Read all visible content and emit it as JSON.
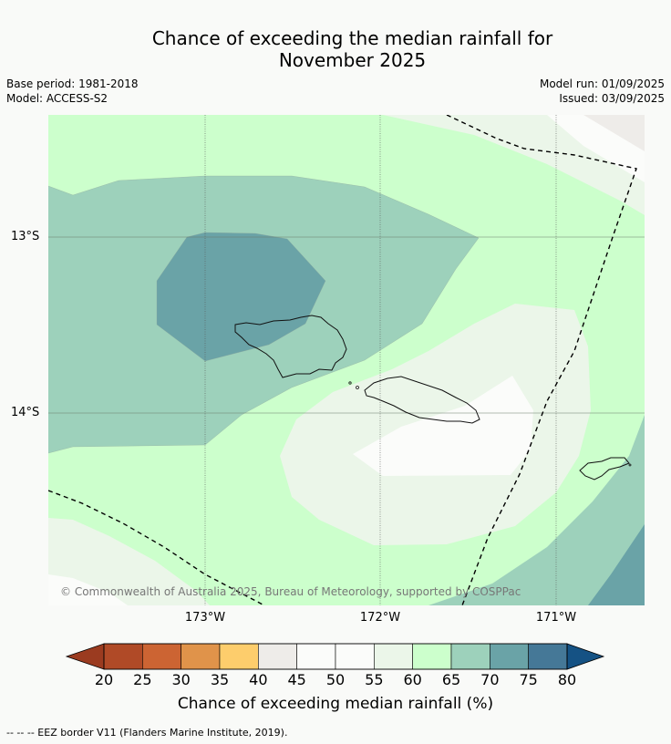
{
  "title_line1": "Chance of exceeding the median rainfall for",
  "title_line2": "November 2025",
  "base_period": "Base period: 1981-2018",
  "model": "Model: ACCESS-S2",
  "model_run": "Model run: 01/09/2025",
  "issued": "Issued: 03/09/2025",
  "lat_labels": [
    "13°S",
    "14°S"
  ],
  "lon_labels": [
    "173°W",
    "172°W",
    "171°W"
  ],
  "copyright": "© Commonwealth of Australia 2025, Bureau of Meteorology, supported by COSPPac",
  "colorbar": {
    "label": "Chance of exceeding median rainfall (%)",
    "ticks": [
      "20",
      "25",
      "30",
      "35",
      "40",
      "45",
      "50",
      "55",
      "60",
      "65",
      "70",
      "75",
      "80"
    ],
    "colors": [
      "#b04a27",
      "#cc6433",
      "#e0934a",
      "#fdcd6c",
      "#eeece9",
      "#fbfcfa",
      "#fbfcfa",
      "#ebf6e9",
      "#ccffcc",
      "#9dd1bb",
      "#6aa3a7",
      "#457897"
    ],
    "low_extend_color": "#9b3b20",
    "high_extend_color": "#155284"
  },
  "footnote": "--  --  -- EEZ border V11 (Flanders Marine Institute, 2019)."
}
